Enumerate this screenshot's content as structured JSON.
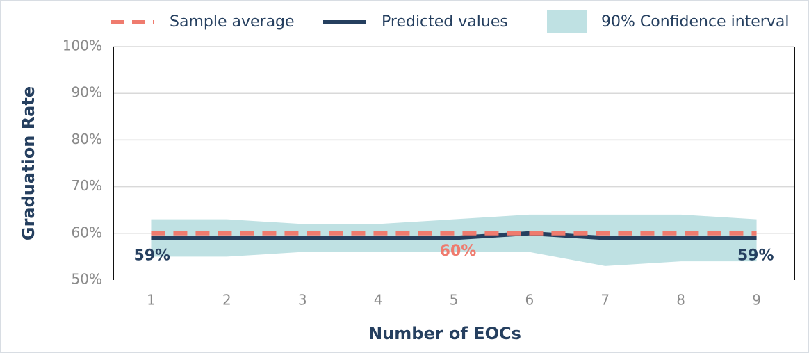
{
  "chart_data": {
    "type": "line",
    "x_label": "Number of EOCs",
    "y_label": "Graduation Rate",
    "categories": [
      "1",
      "2",
      "3",
      "4",
      "5",
      "6",
      "7",
      "8",
      "9"
    ],
    "ylim": [
      50,
      100
    ],
    "yticks": [
      {
        "value": 50,
        "label": "50%"
      },
      {
        "value": 60,
        "label": "60%"
      },
      {
        "value": 70,
        "label": "70%"
      },
      {
        "value": 80,
        "label": "80%"
      },
      {
        "value": 90,
        "label": "90%"
      },
      {
        "value": 100,
        "label": "100%"
      }
    ],
    "grid": true,
    "legend": "top",
    "series": [
      {
        "name": "Sample average",
        "color": "#ef7b6e",
        "dash": true,
        "values": [
          60,
          60,
          60,
          60,
          60,
          60,
          60,
          60,
          60
        ],
        "value_labels": [
          null,
          null,
          null,
          null,
          "60%",
          null,
          null,
          null,
          null
        ]
      },
      {
        "name": "Predicted values",
        "color": "#253f5f",
        "values": [
          59,
          59,
          59,
          59,
          59,
          60,
          59,
          59,
          59
        ],
        "value_labels": [
          "59%",
          null,
          null,
          null,
          null,
          null,
          null,
          null,
          "59%"
        ]
      },
      {
        "name": "90% Confidence interval",
        "color": "#bfe1e3",
        "type": "band",
        "upper": [
          63,
          63,
          62,
          62,
          63,
          64,
          64,
          64,
          63
        ],
        "lower": [
          55,
          55,
          56,
          56,
          56,
          56,
          53,
          54,
          54
        ]
      }
    ]
  }
}
